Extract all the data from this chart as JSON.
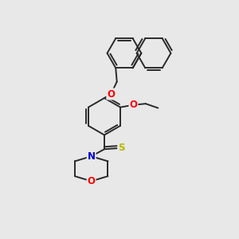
{
  "bg_color": "#e8e8e8",
  "line_color": "#2a2a2a",
  "bond_width": 1.4,
  "atom_colors": {
    "O": "#ff0000",
    "N": "#0000cc",
    "S": "#b8b800"
  },
  "font_size": 8.5
}
